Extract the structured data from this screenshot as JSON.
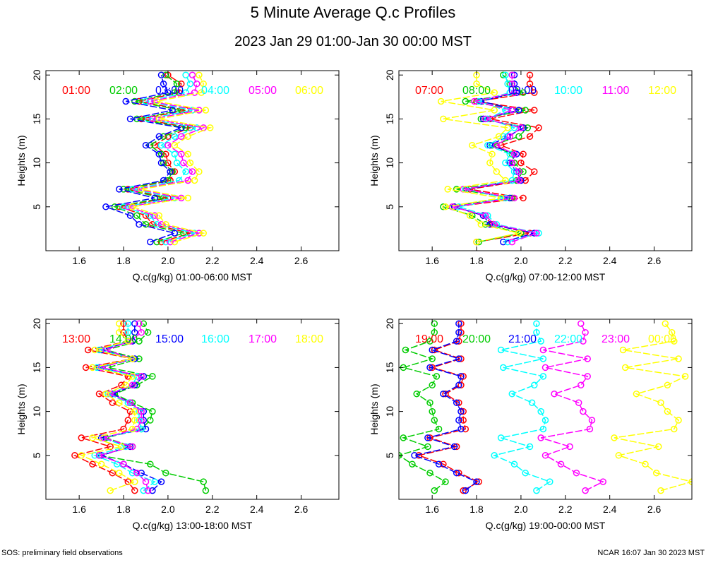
{
  "title": "5 Minute Average Q.c Profiles",
  "subtitle": "2023 Jan 29 01:00-Jan 30 00:00 MST",
  "footer_left": "SOS: preliminary field observations",
  "footer_right": "NCAR 16:07 Jan 30 2023 MST",
  "colors": [
    "#ff0000",
    "#00cc00",
    "#0000ff",
    "#00ffff",
    "#ff00ff",
    "#ffff00"
  ],
  "chart_data": [
    {
      "type": "line",
      "xlabel": "Q.c(g/kg) 01:00-06:00 MST",
      "ylabel": "Heights (m)",
      "xlim": [
        1.45,
        2.77
      ],
      "ylim": [
        0,
        20.5
      ],
      "xticks": [
        "1.6",
        "1.8",
        "2.0",
        "2.2",
        "2.4",
        "2.6"
      ],
      "yticks": [
        "5",
        "10",
        "15",
        "20"
      ],
      "heights": [
        1,
        2,
        3,
        4,
        5,
        6,
        7,
        8,
        9,
        10,
        11,
        12,
        13,
        14,
        15,
        16,
        17,
        18,
        19,
        20
      ],
      "series": [
        {
          "name": "01:00",
          "values": [
            1.97,
            2.1,
            1.93,
            1.9,
            1.78,
            2.0,
            1.82,
            2.01,
            2.03,
            2.0,
            1.99,
            1.94,
            2.0,
            2.1,
            1.88,
            2.08,
            1.87,
            2.05,
            2.06,
            2.0
          ]
        },
        {
          "name": "02:00",
          "values": [
            1.95,
            2.07,
            1.9,
            1.86,
            1.76,
            1.98,
            1.8,
            2.0,
            2.02,
            1.98,
            1.97,
            1.92,
            1.98,
            2.08,
            1.86,
            2.06,
            1.85,
            2.03,
            2.04,
            1.99
          ]
        },
        {
          "name": "03:00",
          "values": [
            1.92,
            2.03,
            1.87,
            1.83,
            1.72,
            1.94,
            1.78,
            1.98,
            2.01,
            1.97,
            1.96,
            1.9,
            1.96,
            2.06,
            1.83,
            2.02,
            1.81,
            2.0,
            1.98,
            1.97
          ]
        },
        {
          "name": "04:00",
          "values": [
            1.99,
            2.12,
            1.95,
            1.92,
            1.8,
            2.03,
            1.84,
            2.05,
            2.08,
            2.04,
            2.03,
            1.97,
            2.03,
            2.13,
            1.91,
            2.11,
            1.9,
            2.08,
            2.1,
            2.08
          ]
        },
        {
          "name": "05:00",
          "values": [
            2.01,
            2.14,
            1.97,
            1.94,
            1.82,
            2.06,
            1.86,
            2.09,
            2.11,
            2.07,
            2.06,
            2.0,
            2.06,
            2.16,
            1.93,
            2.14,
            1.92,
            2.12,
            2.13,
            2.11
          ]
        },
        {
          "name": "06:00",
          "values": [
            2.03,
            2.16,
            1.99,
            1.96,
            1.84,
            2.09,
            1.88,
            2.12,
            2.14,
            2.1,
            2.09,
            2.03,
            2.09,
            2.19,
            1.96,
            2.17,
            1.95,
            2.15,
            2.16,
            2.14
          ]
        }
      ]
    },
    {
      "type": "line",
      "xlabel": "Q.c(g/kg) 07:00-12:00 MST",
      "ylabel": "Heights (m)",
      "xlim": [
        1.45,
        2.77
      ],
      "ylim": [
        0,
        20.5
      ],
      "xticks": [
        "1.6",
        "1.8",
        "2.0",
        "2.2",
        "2.4",
        "2.6"
      ],
      "yticks": [
        "5",
        "10",
        "15",
        "20"
      ],
      "heights": [
        1,
        2,
        3,
        4,
        5,
        6,
        7,
        8,
        9,
        10,
        11,
        12,
        13,
        14,
        15,
        16,
        17,
        18,
        19,
        20
      ],
      "series": [
        {
          "name": "07:00",
          "values": [
            1.8,
            2.04,
            1.87,
            1.83,
            1.7,
            2.01,
            1.77,
            2.02,
            2.06,
            2.0,
            2.01,
            1.91,
            2.04,
            2.08,
            1.86,
            2.06,
            1.8,
            2.06,
            2.04,
            2.04
          ]
        },
        {
          "name": "08:00",
          "values": [
            1.81,
            2.0,
            1.84,
            1.78,
            1.65,
            1.96,
            1.71,
            1.98,
            2.01,
            1.97,
            1.96,
            1.87,
            1.99,
            2.03,
            1.82,
            2.02,
            1.75,
            2.01,
            1.95,
            1.92
          ]
        },
        {
          "name": "09:00",
          "values": [
            1.92,
            2.06,
            1.86,
            1.83,
            1.7,
            1.95,
            1.75,
            2.0,
            1.98,
            1.95,
            1.98,
            1.86,
            1.94,
            2.01,
            1.83,
            1.99,
            1.82,
            1.98,
            1.97,
            1.97
          ]
        },
        {
          "name": "10:00",
          "values": [
            1.94,
            2.08,
            1.89,
            1.85,
            1.72,
            1.93,
            1.75,
            1.96,
            1.97,
            1.93,
            1.95,
            1.85,
            1.92,
            1.97,
            1.85,
            1.93,
            1.81,
            1.95,
            1.94,
            1.93
          ]
        },
        {
          "name": "11:00",
          "values": [
            1.96,
            2.07,
            1.88,
            1.84,
            1.69,
            1.97,
            1.74,
            1.99,
            1.99,
            1.96,
            1.97,
            1.89,
            1.95,
            2.0,
            1.84,
            1.96,
            1.79,
            1.97,
            1.96,
            1.96
          ]
        },
        {
          "name": "12:00",
          "values": [
            1.8,
            1.99,
            1.82,
            1.77,
            1.66,
            1.91,
            1.67,
            1.93,
            1.89,
            1.86,
            1.87,
            1.78,
            1.9,
            1.94,
            1.65,
            1.88,
            1.64,
            1.88,
            1.8,
            1.8
          ]
        }
      ]
    },
    {
      "type": "line",
      "xlabel": "Q.c(g/kg) 13:00-18:00 MST",
      "ylabel": "Heights (m)",
      "xlim": [
        1.45,
        2.77
      ],
      "ylim": [
        0,
        20.5
      ],
      "xticks": [
        "1.6",
        "1.8",
        "2.0",
        "2.2",
        "2.4",
        "2.6"
      ],
      "yticks": [
        "5",
        "10",
        "15",
        "20"
      ],
      "heights": [
        1,
        2,
        3,
        4,
        5,
        6,
        7,
        8,
        9,
        10,
        11,
        12,
        13,
        14,
        15,
        16,
        17,
        18,
        19,
        20
      ],
      "series": [
        {
          "name": "13:00",
          "values": [
            1.85,
            1.82,
            1.75,
            1.66,
            1.58,
            1.74,
            1.61,
            1.8,
            1.82,
            1.83,
            1.75,
            1.69,
            1.79,
            1.82,
            1.63,
            1.84,
            1.64,
            1.82,
            1.8,
            1.8
          ]
        },
        {
          "name": "14:00",
          "values": [
            2.17,
            2.16,
            1.99,
            1.92,
            1.69,
            1.84,
            1.72,
            1.88,
            1.92,
            1.93,
            1.84,
            1.76,
            1.86,
            1.93,
            1.73,
            1.87,
            1.72,
            1.87,
            1.91,
            1.89
          ]
        },
        {
          "name": "15:00",
          "values": [
            1.93,
            1.97,
            1.88,
            1.8,
            1.7,
            1.83,
            1.7,
            1.9,
            1.89,
            1.89,
            1.83,
            1.75,
            1.85,
            1.89,
            1.69,
            1.85,
            1.7,
            1.84,
            1.85,
            1.85
          ]
        },
        {
          "name": "16:00",
          "values": [
            1.89,
            1.94,
            1.84,
            1.77,
            1.67,
            1.81,
            1.71,
            1.88,
            1.87,
            1.87,
            1.82,
            1.73,
            1.84,
            1.86,
            1.68,
            1.84,
            1.69,
            1.82,
            1.82,
            1.82
          ]
        },
        {
          "name": "17:00",
          "values": [
            1.91,
            1.9,
            1.86,
            1.8,
            1.69,
            1.84,
            1.71,
            1.86,
            1.88,
            1.88,
            1.83,
            1.74,
            1.84,
            1.88,
            1.7,
            1.84,
            1.72,
            1.83,
            1.88,
            1.87
          ]
        },
        {
          "name": "18:00",
          "values": [
            1.74,
            1.85,
            1.78,
            1.7,
            1.61,
            1.79,
            1.66,
            1.84,
            1.85,
            1.85,
            1.78,
            1.72,
            1.81,
            1.84,
            1.66,
            1.84,
            1.67,
            1.82,
            1.78,
            1.78
          ]
        }
      ]
    },
    {
      "type": "line",
      "xlabel": "Q.c(g/kg) 19:00-00:00 MST",
      "ylabel": "Heights (m)",
      "xlim": [
        1.45,
        2.77
      ],
      "ylim": [
        0,
        20.5
      ],
      "xticks": [
        "1.6",
        "1.8",
        "2.0",
        "2.2",
        "2.4",
        "2.6"
      ],
      "yticks": [
        "5",
        "10",
        "15",
        "20"
      ],
      "heights": [
        1,
        2,
        3,
        4,
        5,
        6,
        7,
        8,
        9,
        10,
        11,
        12,
        13,
        14,
        15,
        16,
        17,
        18,
        19,
        20
      ],
      "series": [
        {
          "name": "19:00",
          "values": [
            1.74,
            1.81,
            1.72,
            1.65,
            1.54,
            1.71,
            1.59,
            1.75,
            1.74,
            1.74,
            1.72,
            1.66,
            1.73,
            1.74,
            1.6,
            1.73,
            1.61,
            1.72,
            1.73,
            1.73
          ]
        },
        {
          "name": "20:00",
          "values": [
            1.61,
            1.66,
            1.59,
            1.51,
            1.45,
            1.58,
            1.47,
            1.63,
            1.61,
            1.6,
            1.59,
            1.53,
            1.6,
            1.62,
            1.47,
            1.6,
            1.48,
            1.59,
            1.61,
            1.61
          ]
        },
        {
          "name": "21:00",
          "values": [
            1.75,
            1.8,
            1.71,
            1.63,
            1.52,
            1.7,
            1.58,
            1.73,
            1.72,
            1.73,
            1.71,
            1.65,
            1.72,
            1.73,
            1.59,
            1.72,
            1.6,
            1.71,
            1.72,
            1.72
          ]
        },
        {
          "name": "22:00",
          "values": [
            2.07,
            2.13,
            2.02,
            1.97,
            1.88,
            2.04,
            1.91,
            2.1,
            2.11,
            2.09,
            2.05,
            1.96,
            2.06,
            2.1,
            1.92,
            2.1,
            1.91,
            2.09,
            2.07,
            2.07
          ]
        },
        {
          "name": "23:00",
          "values": [
            2.29,
            2.37,
            2.25,
            2.18,
            2.11,
            2.22,
            2.09,
            2.31,
            2.32,
            2.28,
            2.26,
            2.15,
            2.27,
            2.3,
            2.11,
            2.3,
            2.1,
            2.28,
            2.29,
            2.27
          ]
        },
        {
          "name": "00:00",
          "values": [
            2.63,
            2.77,
            2.61,
            2.56,
            2.44,
            2.62,
            2.42,
            2.69,
            2.71,
            2.66,
            2.63,
            2.52,
            2.66,
            2.74,
            2.47,
            2.71,
            2.46,
            2.69,
            2.68,
            2.65
          ]
        }
      ]
    }
  ]
}
